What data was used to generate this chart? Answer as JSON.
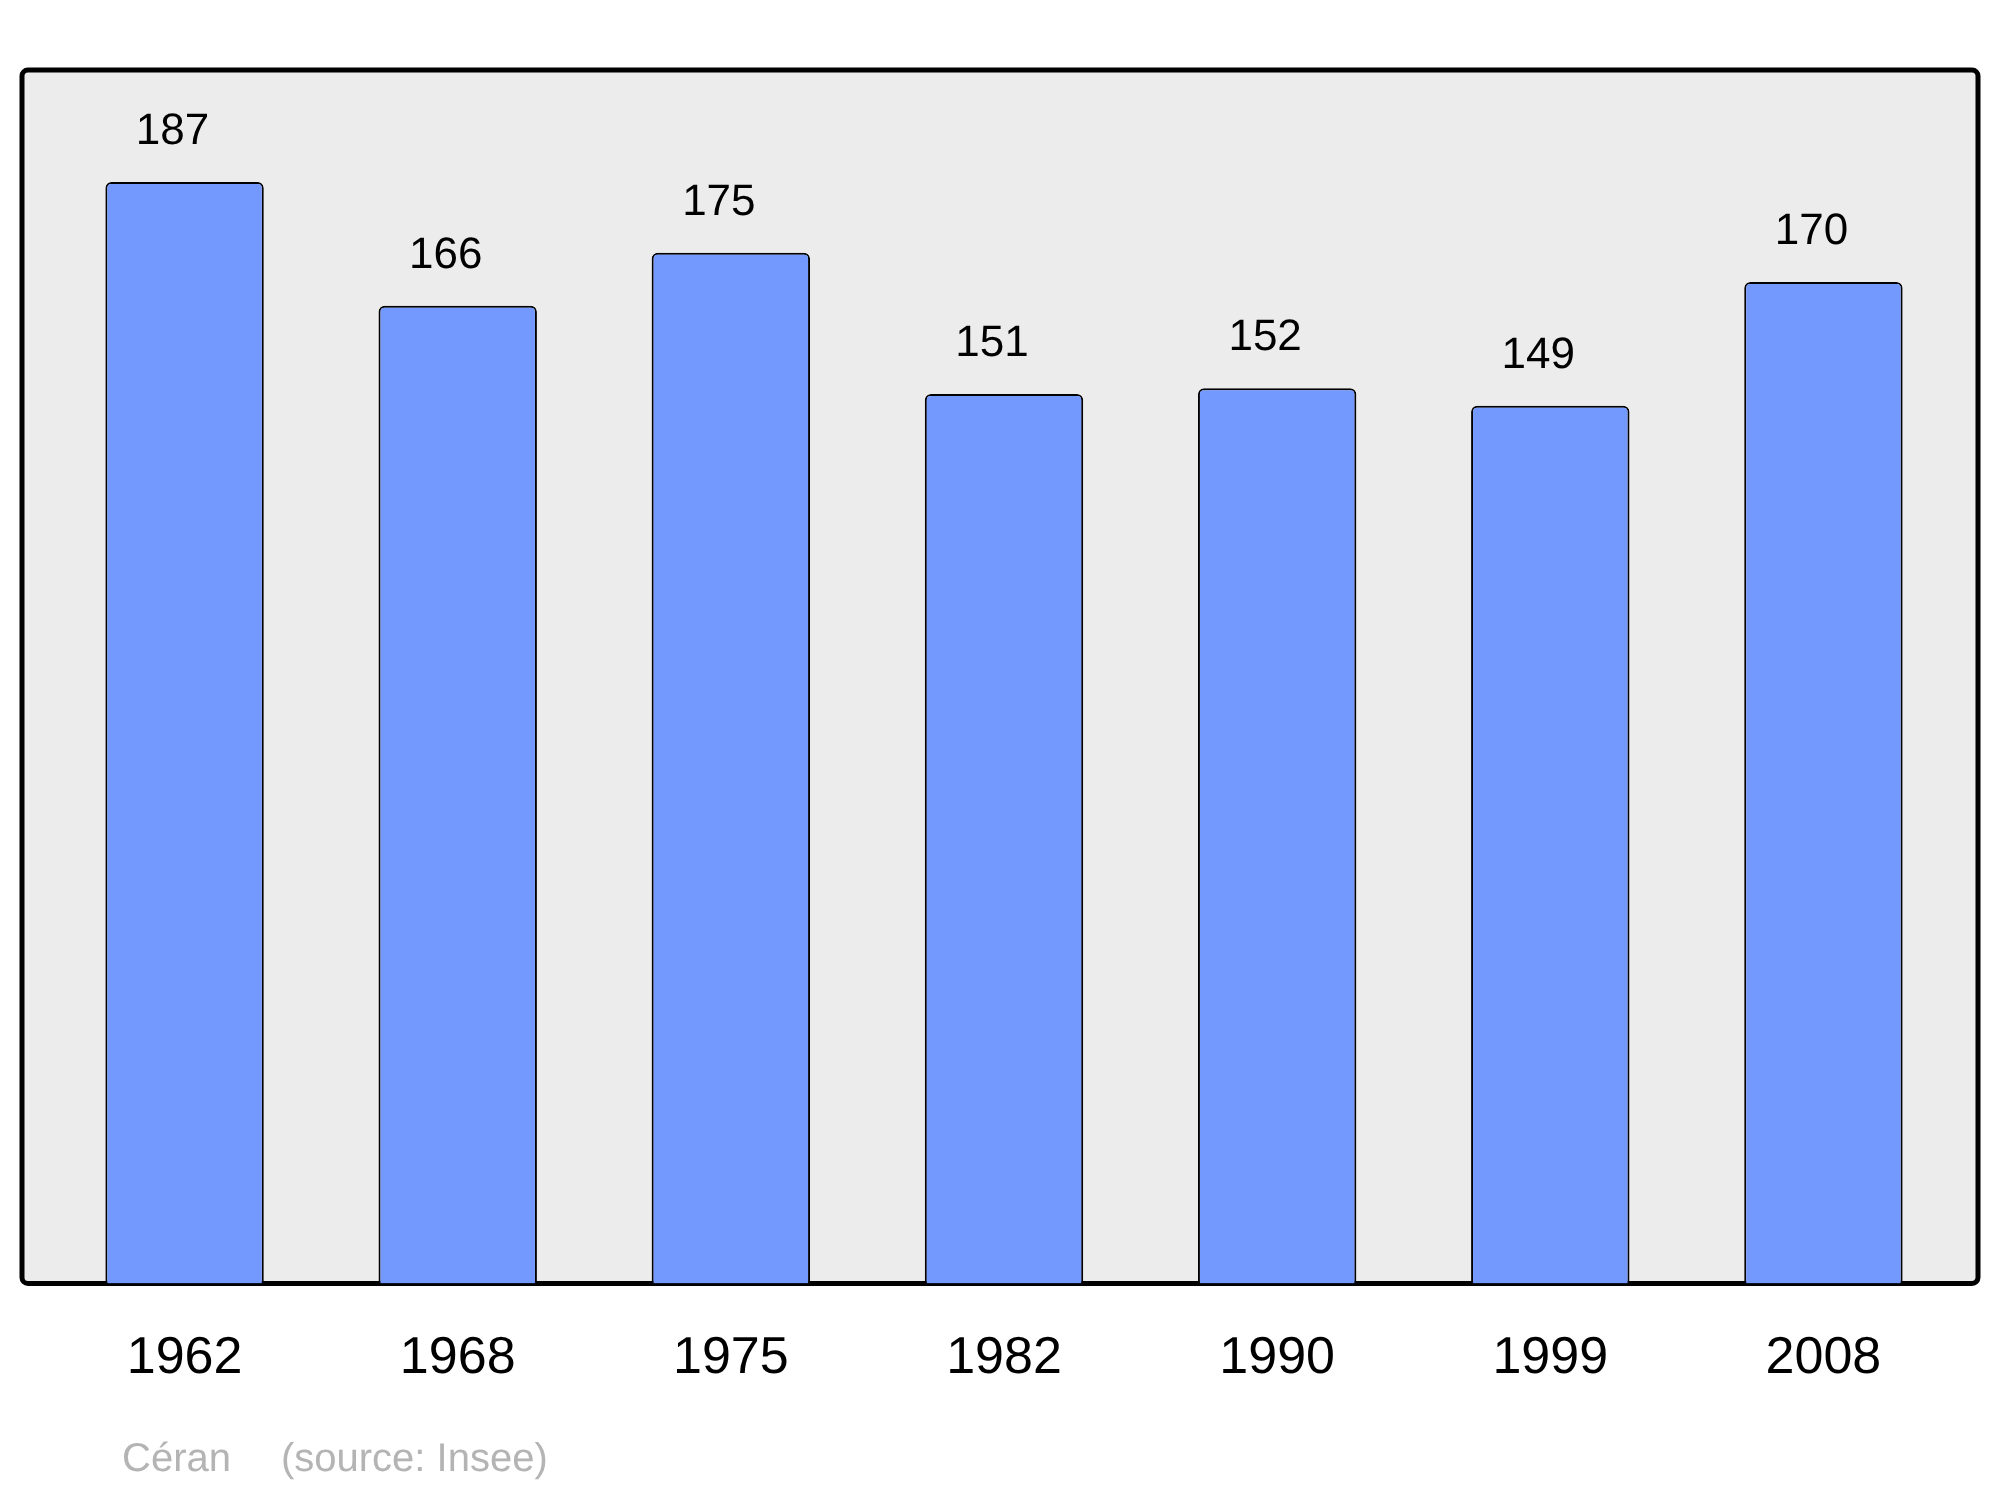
{
  "chart_data": {
    "type": "bar",
    "categories": [
      "1962",
      "1968",
      "1975",
      "1982",
      "1990",
      "1999",
      "2008"
    ],
    "values": [
      187,
      166,
      175,
      151,
      152,
      149,
      170
    ],
    "color": "#7399ff",
    "ylim": [
      0,
      206
    ],
    "data_labels": true,
    "annotations": [
      "Céran",
      "(source: Insee)"
    ]
  }
}
